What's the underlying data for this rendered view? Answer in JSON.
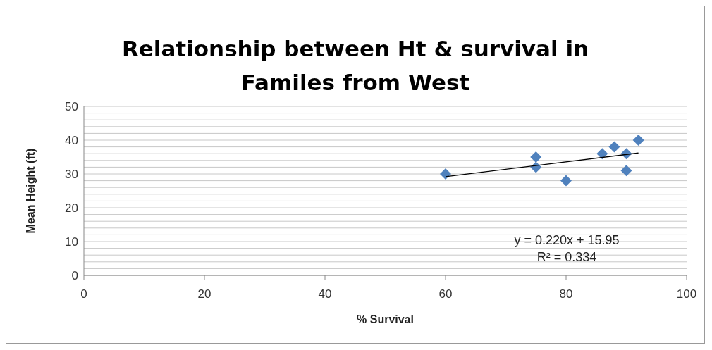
{
  "chart_data": {
    "type": "scatter",
    "title": "Relationship between Ht & survival in Familes from West",
    "xlabel": "% Survival",
    "ylabel": "Mean Height (ft)",
    "series": [
      {
        "type": "scatter",
        "color": "#4f81bd",
        "marker": "diamond",
        "x": [
          60,
          75,
          75,
          80,
          86,
          88,
          90,
          90,
          92
        ],
        "values": [
          30,
          35,
          32,
          28,
          36,
          38,
          36,
          31,
          40
        ]
      },
      {
        "type": "line",
        "color": "#000000",
        "marker": "none",
        "x": [
          60,
          92
        ],
        "values": [
          29.2,
          36.2
        ]
      }
    ],
    "xlim": [
      0,
      100
    ],
    "xticks": [
      0,
      20,
      40,
      60,
      80,
      100
    ],
    "ylim": [
      0,
      50
    ],
    "yticks": [
      0,
      {
        "value": 2,
        "label": null
      },
      {
        "value": 4,
        "label": null
      },
      {
        "value": 6,
        "label": null
      },
      {
        "value": 8,
        "label": null
      },
      10,
      {
        "value": 12,
        "label": null
      },
      {
        "value": 14,
        "label": null
      },
      {
        "value": 16,
        "label": null
      },
      {
        "value": 18,
        "label": null
      },
      20,
      {
        "value": 22,
        "label": null
      },
      {
        "value": 24,
        "label": null
      },
      {
        "value": 26,
        "label": null
      },
      {
        "value": 28,
        "label": null
      },
      30,
      {
        "value": 32,
        "label": null
      },
      {
        "value": 34,
        "label": null
      },
      {
        "value": 36,
        "label": null
      },
      {
        "value": 38,
        "label": null
      },
      40,
      {
        "value": 42,
        "label": null
      },
      {
        "value": 44,
        "label": null
      },
      {
        "value": 46,
        "label": null
      },
      {
        "value": 48,
        "label": null
      },
      50
    ],
    "grid": "y",
    "legend": false,
    "annotations": [
      "y = 0.220x + 15.95",
      "R² = 0.334"
    ]
  }
}
